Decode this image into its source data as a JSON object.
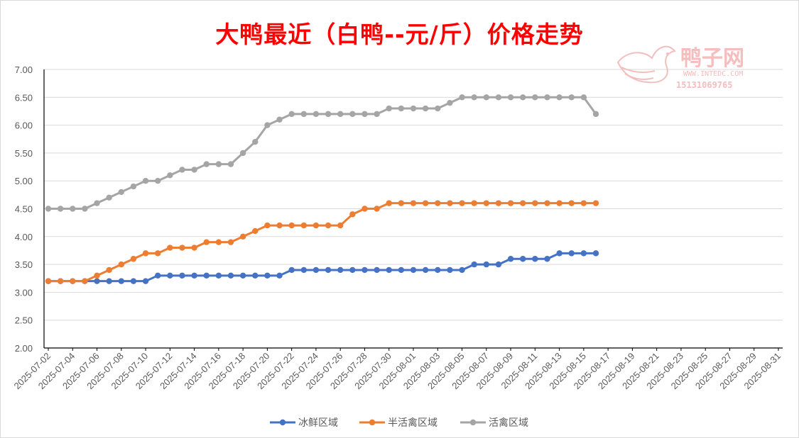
{
  "chart_data": {
    "type": "line",
    "title": "大鸭最近（白鸭--元/斤）价格走势",
    "ylim": [
      2.0,
      7.0
    ],
    "yticks": [
      "7.00",
      "6.50",
      "6.00",
      "5.50",
      "5.00",
      "4.50",
      "4.00",
      "3.50",
      "3.00",
      "2.50",
      "2.00"
    ],
    "ytick_values": [
      7.0,
      6.5,
      6.0,
      5.5,
      5.0,
      4.5,
      4.0,
      3.5,
      3.0,
      2.5,
      2.0
    ],
    "x_start_date": "2025-07-02",
    "x_end_date": "2025-08-31",
    "x_tick_labels": [
      "2025-07-02",
      "2025-07-04",
      "2025-07-06",
      "2025-07-08",
      "2025-07-10",
      "2025-07-12",
      "2025-07-14",
      "2025-07-16",
      "2025-07-18",
      "2025-07-20",
      "2025-07-22",
      "2025-07-24",
      "2025-07-26",
      "2025-07-28",
      "2025-07-30",
      "2025-08-01",
      "2025-08-03",
      "2025-08-05",
      "2025-08-07",
      "2025-08-09",
      "2025-08-11",
      "2025-08-13",
      "2025-08-15",
      "2025-08-17",
      "2025-08-19",
      "2025-08-21",
      "2025-08-23",
      "2025-08-25",
      "2025-08-27",
      "2025-08-29",
      "2025-08-31"
    ],
    "x": [
      "2025-07-02",
      "2025-07-03",
      "2025-07-04",
      "2025-07-05",
      "2025-07-06",
      "2025-07-07",
      "2025-07-08",
      "2025-07-09",
      "2025-07-10",
      "2025-07-11",
      "2025-07-12",
      "2025-07-13",
      "2025-07-14",
      "2025-07-15",
      "2025-07-16",
      "2025-07-17",
      "2025-07-18",
      "2025-07-19",
      "2025-07-20",
      "2025-07-21",
      "2025-07-22",
      "2025-07-23",
      "2025-07-24",
      "2025-07-25",
      "2025-07-26",
      "2025-07-27",
      "2025-07-28",
      "2025-07-29",
      "2025-07-30",
      "2025-07-31",
      "2025-08-01",
      "2025-08-02",
      "2025-08-03",
      "2025-08-04",
      "2025-08-05",
      "2025-08-06",
      "2025-08-07",
      "2025-08-08",
      "2025-08-09",
      "2025-08-10",
      "2025-08-11",
      "2025-08-12",
      "2025-08-13",
      "2025-08-14",
      "2025-08-15",
      "2025-08-16"
    ],
    "series": [
      {
        "name": "冰鲜区域",
        "color": "#4472c4",
        "values": [
          3.2,
          3.2,
          3.2,
          3.2,
          3.2,
          3.2,
          3.2,
          3.2,
          3.2,
          3.3,
          3.3,
          3.3,
          3.3,
          3.3,
          3.3,
          3.3,
          3.3,
          3.3,
          3.3,
          3.3,
          3.4,
          3.4,
          3.4,
          3.4,
          3.4,
          3.4,
          3.4,
          3.4,
          3.4,
          3.4,
          3.4,
          3.4,
          3.4,
          3.4,
          3.4,
          3.5,
          3.5,
          3.5,
          3.6,
          3.6,
          3.6,
          3.6,
          3.7,
          3.7,
          3.7,
          3.7
        ]
      },
      {
        "name": "半活禽区域",
        "color": "#ed7d31",
        "values": [
          3.2,
          3.2,
          3.2,
          3.2,
          3.3,
          3.4,
          3.5,
          3.6,
          3.7,
          3.7,
          3.8,
          3.8,
          3.8,
          3.9,
          3.9,
          3.9,
          4.0,
          4.1,
          4.2,
          4.2,
          4.2,
          4.2,
          4.2,
          4.2,
          4.2,
          4.4,
          4.5,
          4.5,
          4.6,
          4.6,
          4.6,
          4.6,
          4.6,
          4.6,
          4.6,
          4.6,
          4.6,
          4.6,
          4.6,
          4.6,
          4.6,
          4.6,
          4.6,
          4.6,
          4.6,
          4.6
        ]
      },
      {
        "name": "活禽区域",
        "color": "#a5a5a5",
        "values": [
          4.5,
          4.5,
          4.5,
          4.5,
          4.6,
          4.7,
          4.8,
          4.9,
          5.0,
          5.0,
          5.1,
          5.2,
          5.2,
          5.3,
          5.3,
          5.3,
          5.5,
          5.7,
          6.0,
          6.1,
          6.2,
          6.2,
          6.2,
          6.2,
          6.2,
          6.2,
          6.2,
          6.2,
          6.3,
          6.3,
          6.3,
          6.3,
          6.3,
          6.4,
          6.5,
          6.5,
          6.5,
          6.5,
          6.5,
          6.5,
          6.5,
          6.5,
          6.5,
          6.5,
          6.5,
          6.2
        ]
      }
    ],
    "legend_position": "bottom",
    "grid": true
  },
  "watermark": {
    "name": "鸭子网",
    "url": "WWW.INTEDC.COM",
    "phone": "15131069765"
  }
}
